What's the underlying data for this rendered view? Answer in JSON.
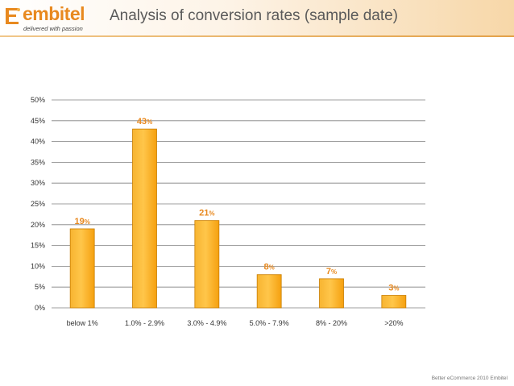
{
  "header": {
    "logo_text": "embitel",
    "logo_tagline": "delivered with passion",
    "title": "Analysis of conversion rates (sample date)"
  },
  "footer": {
    "text": "Better eCommerce 2010 Embitel"
  },
  "colors": {
    "bar_fill": "#f5a00f",
    "bar_stroke": "#c97d00",
    "label": "#e8891f",
    "grid": "#7f7f7f"
  },
  "chart_data": {
    "type": "bar",
    "categories": [
      "below 1%",
      "1.0% - 2.9%",
      "3.0% - 4.9%",
      "5.0% - 7.9%",
      "8% - 20%",
      ">20%"
    ],
    "values": [
      19,
      43,
      21,
      8,
      7,
      3
    ],
    "data_labels": [
      {
        "num": "19",
        "unit": "%"
      },
      {
        "num": "43",
        "unit": "%"
      },
      {
        "num": "21",
        "unit": "%"
      },
      {
        "num": "8",
        "unit": "%"
      },
      {
        "num": "7",
        "unit": "%"
      },
      {
        "num": "3",
        "unit": "%"
      }
    ],
    "yticks": [
      "0%",
      "5%",
      "10%",
      "15%",
      "20%",
      "25%",
      "30%",
      "35%",
      "40%",
      "45%",
      "50%"
    ],
    "ylim": [
      0,
      50
    ],
    "grid": true,
    "legend": "none"
  }
}
